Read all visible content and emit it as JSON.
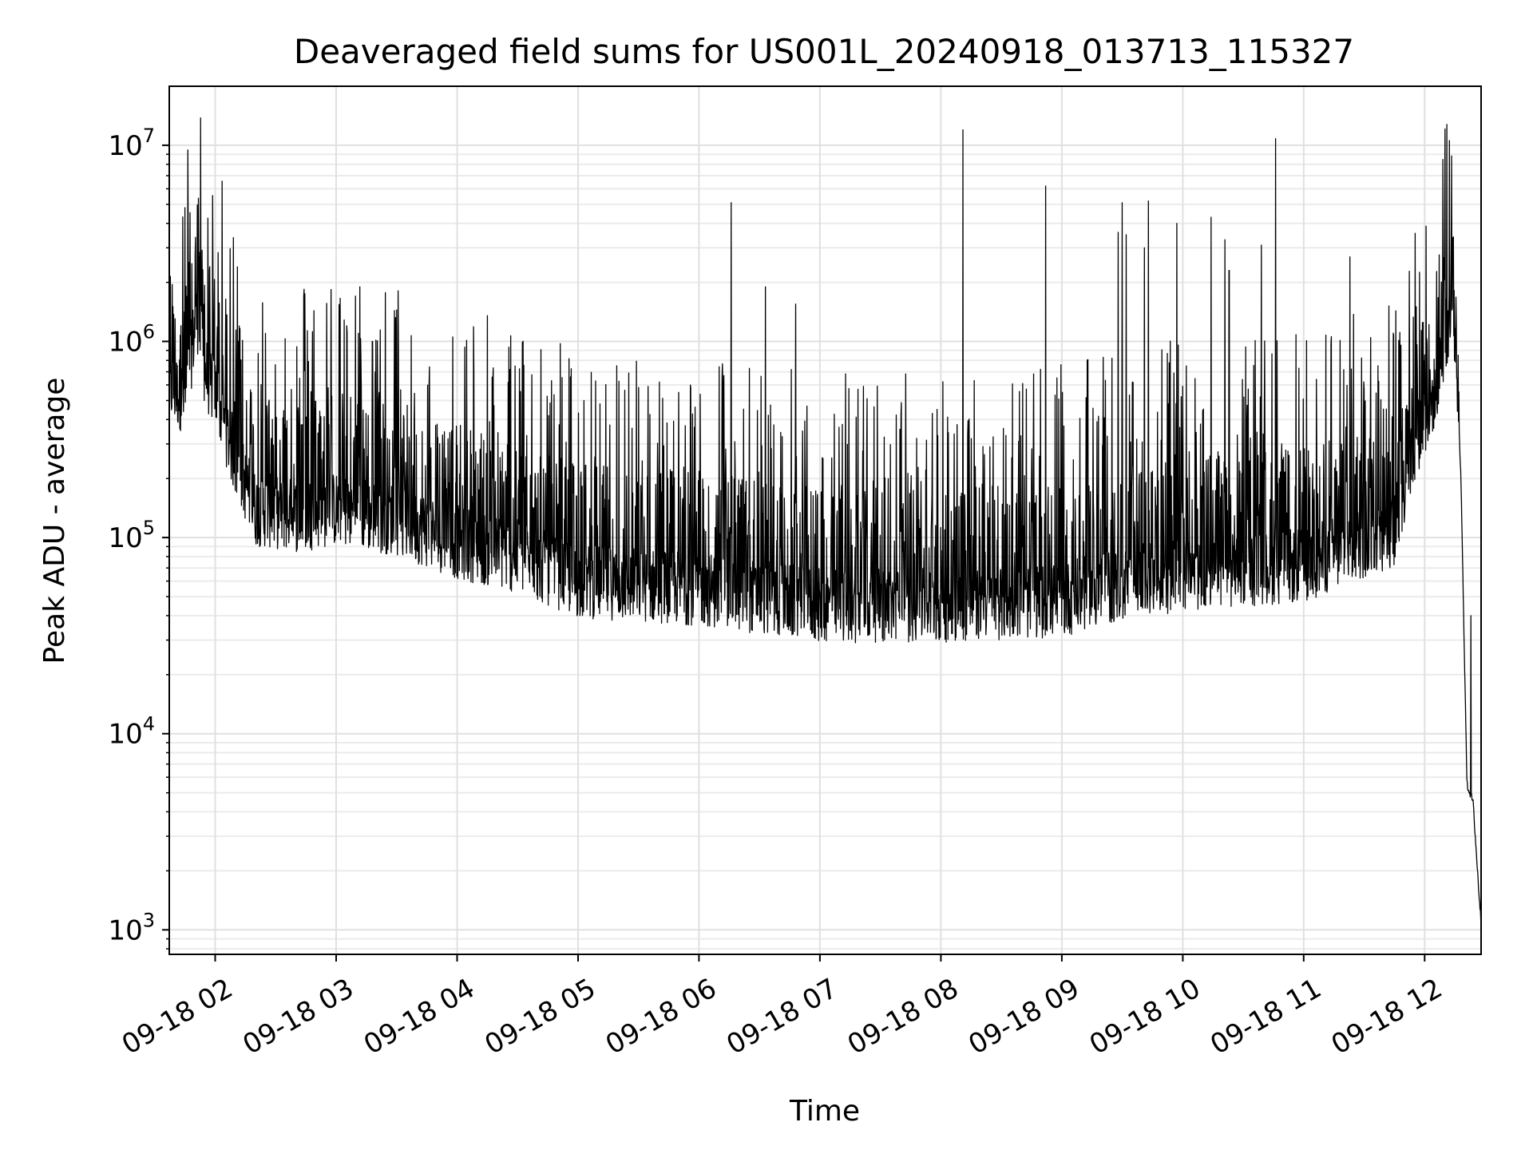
{
  "chart_data": {
    "type": "line",
    "title": "Deaveraged field sums for US001L_20240918_013713_115327",
    "xlabel": "Time",
    "ylabel": "Peak ADU - average",
    "yscale": "log",
    "grid": true,
    "x_range": [
      "2024-09-18 01:37:13",
      "2024-09-18 12:28:00"
    ],
    "ylim": [
      750,
      20000000
    ],
    "x_ticks": [
      {
        "label": "09-18 02",
        "time": "2024-09-18 02:00"
      },
      {
        "label": "09-18 03",
        "time": "2024-09-18 03:00"
      },
      {
        "label": "09-18 04",
        "time": "2024-09-18 04:00"
      },
      {
        "label": "09-18 05",
        "time": "2024-09-18 05:00"
      },
      {
        "label": "09-18 06",
        "time": "2024-09-18 06:00"
      },
      {
        "label": "09-18 07",
        "time": "2024-09-18 07:00"
      },
      {
        "label": "09-18 08",
        "time": "2024-09-18 08:00"
      },
      {
        "label": "09-18 09",
        "time": "2024-09-18 09:00"
      },
      {
        "label": "09-18 10",
        "time": "2024-09-18 10:00"
      },
      {
        "label": "09-18 11",
        "time": "2024-09-18 11:00"
      },
      {
        "label": "09-18 12",
        "time": "2024-09-18 12:00"
      }
    ],
    "y_ticks": [
      {
        "base": "10",
        "exp": "3",
        "value": 1000
      },
      {
        "base": "10",
        "exp": "4",
        "value": 10000
      },
      {
        "base": "10",
        "exp": "5",
        "value": 100000
      },
      {
        "base": "10",
        "exp": "6",
        "value": 1000000
      },
      {
        "base": "10",
        "exp": "7",
        "value": 10000000
      }
    ],
    "series": [
      {
        "color": "#000000",
        "baseline": [
          {
            "time": "2024-09-18 01:37",
            "y": 600000
          },
          {
            "time": "2024-09-18 01:45",
            "y": 520000
          },
          {
            "time": "2024-09-18 01:51",
            "y": 1400000
          },
          {
            "time": "2024-09-18 01:55",
            "y": 700000
          },
          {
            "time": "2024-09-18 02:00",
            "y": 550000
          },
          {
            "time": "2024-09-18 02:10",
            "y": 250000
          },
          {
            "time": "2024-09-18 02:20",
            "y": 140000
          },
          {
            "time": "2024-09-18 02:40",
            "y": 130000
          },
          {
            "time": "2024-09-18 03:00",
            "y": 140000
          },
          {
            "time": "2024-09-18 03:30",
            "y": 125000
          },
          {
            "time": "2024-09-18 04:00",
            "y": 95000
          },
          {
            "time": "2024-09-18 04:30",
            "y": 80000
          },
          {
            "time": "2024-09-18 05:00",
            "y": 60000
          },
          {
            "time": "2024-09-18 06:00",
            "y": 55000
          },
          {
            "time": "2024-09-18 07:00",
            "y": 45000
          },
          {
            "time": "2024-09-18 08:00",
            "y": 45000
          },
          {
            "time": "2024-09-18 09:00",
            "y": 48000
          },
          {
            "time": "2024-09-18 09:30",
            "y": 58000
          },
          {
            "time": "2024-09-18 10:00",
            "y": 65000
          },
          {
            "time": "2024-09-18 11:00",
            "y": 72000
          },
          {
            "time": "2024-09-18 11:45",
            "y": 110000
          },
          {
            "time": "2024-09-18 11:55",
            "y": 300000
          },
          {
            "time": "2024-09-18 12:05",
            "y": 550000
          },
          {
            "time": "2024-09-18 12:12",
            "y": 1300000
          },
          {
            "time": "2024-09-18 12:15",
            "y": 1200000
          },
          {
            "time": "2024-09-18 12:18",
            "y": 200000
          },
          {
            "time": "2024-09-18 12:21",
            "y": 5500
          },
          {
            "time": "2024-09-18 12:24",
            "y": 4500
          },
          {
            "time": "2024-09-18 12:27",
            "y": 1500
          },
          {
            "time": "2024-09-18 12:28",
            "y": 1100
          }
        ],
        "spikes": [
          {
            "time": "2024-09-18 01:52",
            "y": 2700000
          },
          {
            "time": "2024-09-18 02:12",
            "y": 1200000
          },
          {
            "time": "2024-09-18 02:25",
            "y": 1100000
          },
          {
            "time": "2024-09-18 02:44",
            "y": 1700000
          },
          {
            "time": "2024-09-18 03:11",
            "y": 1100000
          },
          {
            "time": "2024-09-18 03:18",
            "y": 1000000
          },
          {
            "time": "2024-09-18 04:26",
            "y": 720000
          },
          {
            "time": "2024-09-18 05:03",
            "y": 500000
          },
          {
            "time": "2024-09-18 05:50",
            "y": 550000
          },
          {
            "time": "2024-09-18 06:16",
            "y": 5100000
          },
          {
            "time": "2024-09-18 06:33",
            "y": 1900000
          },
          {
            "time": "2024-09-18 06:48",
            "y": 1550000
          },
          {
            "time": "2024-09-18 08:11",
            "y": 12000000
          },
          {
            "time": "2024-09-18 08:52",
            "y": 6200000
          },
          {
            "time": "2024-09-18 09:28",
            "y": 3600000
          },
          {
            "time": "2024-09-18 09:30",
            "y": 5100000
          },
          {
            "time": "2024-09-18 09:32",
            "y": 3500000
          },
          {
            "time": "2024-09-18 09:41",
            "y": 3000000
          },
          {
            "time": "2024-09-18 09:43",
            "y": 5200000
          },
          {
            "time": "2024-09-18 09:57",
            "y": 4000000
          },
          {
            "time": "2024-09-18 10:14",
            "y": 4300000
          },
          {
            "time": "2024-09-18 10:21",
            "y": 3300000
          },
          {
            "time": "2024-09-18 10:23",
            "y": 2300000
          },
          {
            "time": "2024-09-18 10:39",
            "y": 3100000
          },
          {
            "time": "2024-09-18 10:46",
            "y": 10800000
          },
          {
            "time": "2024-09-18 11:23",
            "y": 2700000
          },
          {
            "time": "2024-09-18 12:10",
            "y": 5100000
          },
          {
            "time": "2024-09-18 12:23",
            "y": 40000
          }
        ]
      }
    ]
  }
}
